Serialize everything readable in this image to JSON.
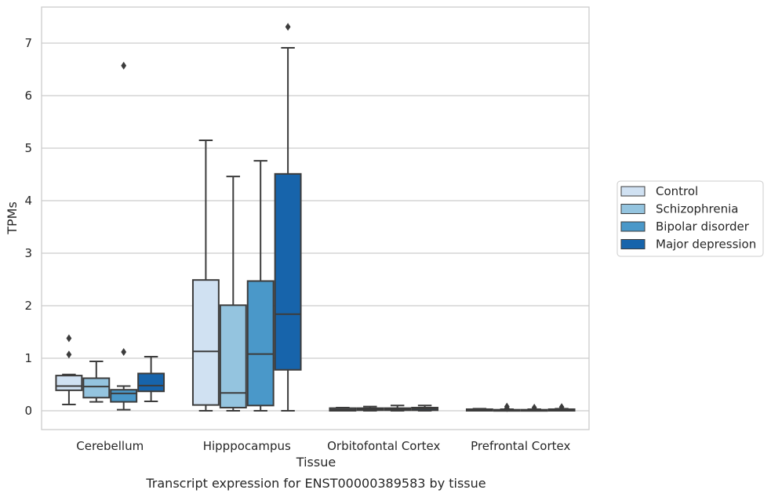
{
  "caption": "Transcript expression for ENST00000389583 by tissue",
  "colors": {
    "Control": "#d0e1f2",
    "Schizophrenia": "#94c4df",
    "Bipolar disorder": "#4a98c9",
    "Major depression": "#1764ab",
    "line": "#3c3c3c",
    "grid": "#cccccc"
  },
  "chart_data": {
    "type": "box",
    "xlabel": "Tissue",
    "ylabel": "TPMs",
    "categories": [
      "Cerebellum",
      "Hipppocampus",
      "Orbitofontal Cortex",
      "Prefrontal Cortex"
    ],
    "y_ticks": [
      0,
      1,
      2,
      3,
      4,
      5,
      6,
      7
    ],
    "ylim": [
      -0.35,
      7.7
    ],
    "grid": "horizontal",
    "legend_position": "right",
    "series": [
      {
        "name": "Control",
        "boxes": [
          {
            "min": 0.12,
            "q1": 0.39,
            "median": 0.47,
            "q3": 0.67,
            "max": 0.69,
            "outliers": [
              1.07,
              1.38
            ]
          },
          {
            "min": 0.0,
            "q1": 0.11,
            "median": 1.13,
            "q3": 2.49,
            "max": 5.15,
            "outliers": []
          },
          {
            "min": 0.0,
            "q1": 0.0,
            "median": 0.02,
            "q3": 0.05,
            "max": 0.06,
            "outliers": []
          },
          {
            "min": 0.0,
            "q1": 0.0,
            "median": 0.01,
            "q3": 0.03,
            "max": 0.04,
            "outliers": []
          }
        ]
      },
      {
        "name": "Schizophrenia",
        "boxes": [
          {
            "min": 0.17,
            "q1": 0.25,
            "median": 0.46,
            "q3": 0.62,
            "max": 0.94,
            "outliers": []
          },
          {
            "min": 0.0,
            "q1": 0.06,
            "median": 0.34,
            "q3": 2.01,
            "max": 4.46,
            "outliers": []
          },
          {
            "min": 0.0,
            "q1": 0.01,
            "median": 0.03,
            "q3": 0.05,
            "max": 0.08,
            "outliers": []
          },
          {
            "min": 0.0,
            "q1": 0.0,
            "median": 0.01,
            "q3": 0.02,
            "max": 0.03,
            "outliers": [
              0.05,
              0.08
            ]
          }
        ]
      },
      {
        "name": "Bipolar disorder",
        "boxes": [
          {
            "min": 0.02,
            "q1": 0.17,
            "median": 0.33,
            "q3": 0.4,
            "max": 0.47,
            "outliers": [
              1.12,
              6.57
            ]
          },
          {
            "min": 0.0,
            "q1": 0.1,
            "median": 1.08,
            "q3": 2.47,
            "max": 4.76,
            "outliers": []
          },
          {
            "min": 0.0,
            "q1": 0.01,
            "median": 0.03,
            "q3": 0.05,
            "max": 0.1,
            "outliers": []
          },
          {
            "min": 0.0,
            "q1": 0.0,
            "median": 0.01,
            "q3": 0.02,
            "max": 0.03,
            "outliers": [
              0.06
            ]
          }
        ]
      },
      {
        "name": "Major depression",
        "boxes": [
          {
            "min": 0.18,
            "q1": 0.37,
            "median": 0.48,
            "q3": 0.71,
            "max": 1.03,
            "outliers": []
          },
          {
            "min": 0.0,
            "q1": 0.78,
            "median": 1.84,
            "q3": 4.51,
            "max": 6.91,
            "outliers": [
              7.31
            ]
          },
          {
            "min": 0.0,
            "q1": 0.01,
            "median": 0.04,
            "q3": 0.06,
            "max": 0.1,
            "outliers": []
          },
          {
            "min": 0.0,
            "q1": 0.0,
            "median": 0.01,
            "q3": 0.03,
            "max": 0.04,
            "outliers": [
              0.07
            ]
          }
        ]
      }
    ]
  }
}
